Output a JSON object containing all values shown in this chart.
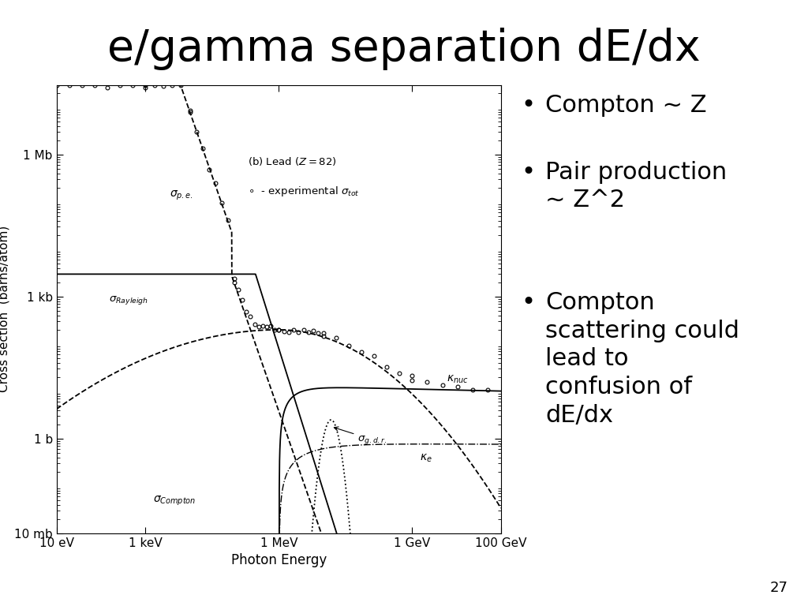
{
  "title": "e/gamma separation dE/dx",
  "title_fontsize": 40,
  "plot_xlabel": "Photon Energy",
  "plot_ylabel": "Cross section  (barns/atom)",
  "plot_ytick_vals": [
    0.01,
    1,
    1000.0,
    1000000.0
  ],
  "plot_ytick_labels": [
    "10 mb",
    "1 b",
    "1 kb",
    "1 Mb"
  ],
  "plot_xtick_vals": [
    10,
    1000.0,
    1000000.0,
    1000000000.0,
    100000000000.0
  ],
  "plot_xtick_labels": [
    "10 eV",
    "1 keV",
    "1 MeV",
    "1 GeV",
    "100 GeV"
  ],
  "x_min": 10,
  "x_max": 100000000000.0,
  "y_min": 0.01,
  "y_max": 30000000.0,
  "background_color": "#ffffff",
  "page_number": "27",
  "bullet1": "Compton ~ Z",
  "bullet2": "Pair production\n~ Z^2",
  "bullet3": "Compton\nscattering could\nlead to\nconfusion of\ndE/dx"
}
